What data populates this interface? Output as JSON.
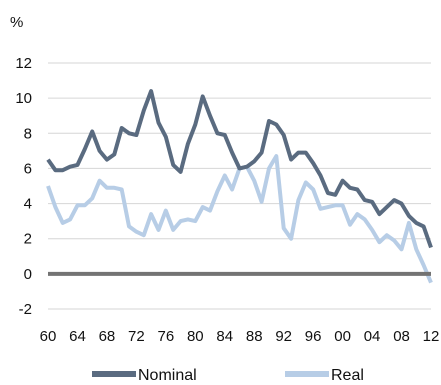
{
  "chart_data": {
    "type": "line",
    "title": "",
    "ylabel": "%",
    "xlabel": "",
    "ylim": [
      -2,
      12
    ],
    "yticks": [
      -2,
      0,
      2,
      4,
      6,
      8,
      10,
      12
    ],
    "ytick_labels": [
      "-2",
      "0",
      "2",
      "4",
      "6",
      "8",
      "10",
      "12"
    ],
    "xticks": [
      1960,
      1964,
      1968,
      1972,
      1976,
      1980,
      1984,
      1988,
      1992,
      1996,
      2000,
      2004,
      2008,
      2012
    ],
    "xtick_labels": [
      "60",
      "64",
      "68",
      "72",
      "76",
      "80",
      "84",
      "88",
      "92",
      "96",
      "00",
      "04",
      "08",
      "12"
    ],
    "grid": "horizontal",
    "zero_line": true,
    "legend": "bottom",
    "colors": {
      "nominal": "#5a6b80",
      "real": "#b7cde6",
      "zero_line": "#737373",
      "grid": "#d6d6d6"
    },
    "series": [
      {
        "name": "Nominal",
        "x": [
          1960,
          1961,
          1962,
          1963,
          1964,
          1965,
          1966,
          1967,
          1968,
          1969,
          1970,
          1971,
          1972,
          1973,
          1974,
          1975,
          1976,
          1977,
          1978,
          1979,
          1980,
          1981,
          1982,
          1983,
          1984,
          1985,
          1986,
          1987,
          1988,
          1989,
          1990,
          1991,
          1992,
          1993,
          1994,
          1995,
          1996,
          1997,
          1998,
          1999,
          2000,
          2001,
          2002,
          2003,
          2004,
          2005,
          2006,
          2007,
          2008,
          2009,
          2010,
          2011,
          2012
        ],
        "values": [
          6.5,
          5.9,
          5.9,
          6.1,
          6.2,
          7.1,
          8.1,
          7.0,
          6.5,
          6.8,
          8.3,
          8.0,
          7.9,
          9.3,
          10.4,
          8.6,
          7.8,
          6.2,
          5.8,
          7.4,
          8.5,
          10.1,
          9.0,
          8.0,
          7.9,
          6.9,
          6.0,
          6.1,
          6.4,
          6.9,
          8.7,
          8.5,
          7.9,
          6.5,
          6.9,
          6.9,
          6.3,
          5.6,
          4.6,
          4.5,
          5.3,
          4.9,
          4.8,
          4.2,
          4.1,
          3.4,
          3.8,
          4.2,
          4.0,
          3.3,
          2.9,
          2.7,
          1.5
        ]
      },
      {
        "name": "Real",
        "x": [
          1960,
          1961,
          1962,
          1963,
          1964,
          1965,
          1966,
          1967,
          1968,
          1969,
          1970,
          1971,
          1972,
          1973,
          1974,
          1975,
          1976,
          1977,
          1978,
          1979,
          1980,
          1981,
          1982,
          1983,
          1984,
          1985,
          1986,
          1987,
          1988,
          1989,
          1990,
          1991,
          1992,
          1993,
          1994,
          1995,
          1996,
          1997,
          1998,
          1999,
          2000,
          2001,
          2002,
          2003,
          2004,
          2005,
          2006,
          2007,
          2008,
          2009,
          2010,
          2011,
          2012
        ],
        "values": [
          5.0,
          3.8,
          2.9,
          3.1,
          3.9,
          3.9,
          4.3,
          5.3,
          4.9,
          4.9,
          4.8,
          2.7,
          2.4,
          2.2,
          3.4,
          2.5,
          3.6,
          2.5,
          3.0,
          3.1,
          3.0,
          3.8,
          3.6,
          4.7,
          5.6,
          4.8,
          6.0,
          6.1,
          5.3,
          4.1,
          6.0,
          6.7,
          2.6,
          2.0,
          4.2,
          5.2,
          4.8,
          3.7,
          3.8,
          3.9,
          3.9,
          2.8,
          3.4,
          3.1,
          2.5,
          1.8,
          2.2,
          1.9,
          1.4,
          2.9,
          1.4,
          0.5,
          -0.5
        ]
      }
    ]
  }
}
